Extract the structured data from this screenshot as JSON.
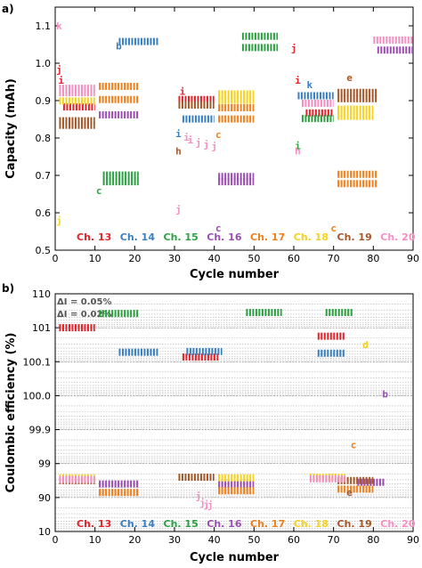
{
  "chart_data": [
    {
      "panel_label": "a)",
      "type": "scatter",
      "xlabel": "Cycle number",
      "ylabel": "Capacity (mAh)",
      "xlim": [
        0,
        90
      ],
      "ylim": [
        0.5,
        1.15
      ],
      "x_ticks": [
        "0",
        "10",
        "20",
        "30",
        "40",
        "50",
        "60",
        "70",
        "80",
        "90"
      ],
      "y_ticks": [
        "0.5",
        "0.6",
        "0.7",
        "0.8",
        "0.9",
        "1.0",
        "1.1"
      ],
      "x_tick_values": [
        0,
        10,
        20,
        30,
        40,
        50,
        60,
        70,
        80,
        90
      ],
      "y_tick_values": [
        0.5,
        0.6,
        0.7,
        0.8,
        0.9,
        1.0,
        1.1
      ],
      "grid": false,
      "legend": {
        "placement": "bottom",
        "entries": [
          {
            "label": "Ch. 13",
            "color": "#e4242b"
          },
          {
            "label": "Ch. 14",
            "color": "#3a7fc0"
          },
          {
            "label": "Ch. 15",
            "color": "#2ea044"
          },
          {
            "label": "Ch. 16",
            "color": "#9a4fb0"
          },
          {
            "label": "Ch. 17",
            "color": "#f07f1c"
          },
          {
            "label": "Ch. 18",
            "color": "#f6d11e"
          },
          {
            "label": "Ch. 19",
            "color": "#a5582a"
          },
          {
            "label": "Ch. 20",
            "color": "#f58fc1"
          }
        ]
      },
      "series": [
        {
          "name": "Ch. 13",
          "color": "#e4242b",
          "points": [
            {
              "x": 1,
              "y": 0.983,
              "label": "j"
            },
            {
              "x": 1.5,
              "y": 0.955,
              "label": "i"
            },
            {
              "x": 32,
              "y": 0.925,
              "label": "i"
            },
            {
              "x": 60,
              "y": 1.04,
              "label": "j"
            },
            {
              "x": 61,
              "y": 0.955,
              "label": "i"
            }
          ],
          "segments": [
            {
              "x0": 2,
              "x1": 10,
              "y": 0.883
            },
            {
              "x0": 31,
              "x1": 40,
              "y": 0.903
            },
            {
              "x0": 63,
              "x1": 70,
              "y": 0.867
            }
          ]
        },
        {
          "name": "Ch. 14",
          "color": "#3a7fc0",
          "points": [
            {
              "x": 16,
              "y": 1.047,
              "label": "b"
            },
            {
              "x": 31,
              "y": 0.812,
              "label": "i"
            },
            {
              "x": 64,
              "y": 0.943,
              "label": "k"
            }
          ],
          "segments": [
            {
              "x0": 16,
              "x1": 26,
              "y": 1.058
            },
            {
              "x0": 32,
              "x1": 40,
              "y": 0.851
            },
            {
              "x0": 61,
              "x1": 70,
              "y": 0.913
            }
          ]
        },
        {
          "name": "Ch. 15",
          "color": "#2ea044",
          "points": [
            {
              "x": 11,
              "y": 0.66,
              "label": "c"
            },
            {
              "x": 61,
              "y": 0.78,
              "label": "i"
            }
          ],
          "segments": [
            {
              "x0": 12,
              "x1": 21,
              "y": 0.701
            },
            {
              "x0": 12,
              "x1": 21,
              "y": 0.683
            },
            {
              "x0": 47,
              "x1": 56,
              "y": 1.072
            },
            {
              "x0": 47,
              "x1": 56,
              "y": 1.042
            },
            {
              "x0": 62,
              "x1": 70,
              "y": 0.852
            }
          ]
        },
        {
          "name": "Ch. 16",
          "color": "#9a4fb0",
          "points": [
            {
              "x": 41,
              "y": 0.56,
              "label": "c"
            }
          ],
          "segments": [
            {
              "x0": 11,
              "x1": 21,
              "y": 0.862
            },
            {
              "x0": 41,
              "x1": 50,
              "y": 0.697
            },
            {
              "x0": 41,
              "x1": 50,
              "y": 0.683
            },
            {
              "x0": 81,
              "x1": 90,
              "y": 1.035
            }
          ]
        },
        {
          "name": "Ch. 17",
          "color": "#f07f1c",
          "points": [
            {
              "x": 41,
              "y": 0.81,
              "label": "c"
            },
            {
              "x": 70,
              "y": 0.56,
              "label": "c"
            }
          ],
          "segments": [
            {
              "x0": 11,
              "x1": 21,
              "y": 0.938
            },
            {
              "x0": 11,
              "x1": 21,
              "y": 0.903
            },
            {
              "x0": 41,
              "x1": 50,
              "y": 0.881
            },
            {
              "x0": 41,
              "x1": 50,
              "y": 0.851
            },
            {
              "x0": 71,
              "x1": 81,
              "y": 0.703
            },
            {
              "x0": 71,
              "x1": 81,
              "y": 0.678
            }
          ]
        },
        {
          "name": "Ch. 18",
          "color": "#f6d11e",
          "points": [
            {
              "x": 1,
              "y": 0.58,
              "label": "j"
            }
          ],
          "segments": [
            {
              "x0": 1,
              "x1": 10,
              "y": 0.899
            },
            {
              "x0": 41,
              "x1": 50,
              "y": 0.918
            },
            {
              "x0": 41,
              "x1": 50,
              "y": 0.901
            },
            {
              "x0": 71,
              "x1": 80,
              "y": 0.877
            },
            {
              "x0": 71,
              "x1": 80,
              "y": 0.858
            }
          ]
        },
        {
          "name": "Ch. 19",
          "color": "#a5582a",
          "points": [
            {
              "x": 31,
              "y": 0.765,
              "label": "h"
            },
            {
              "x": 74,
              "y": 0.962,
              "label": "e"
            }
          ],
          "segments": [
            {
              "x0": 1,
              "x1": 10,
              "y": 0.846
            },
            {
              "x0": 1,
              "x1": 10,
              "y": 0.834
            },
            {
              "x0": 31,
              "x1": 40,
              "y": 0.888
            },
            {
              "x0": 71,
              "x1": 81,
              "y": 0.922
            },
            {
              "x0": 71,
              "x1": 81,
              "y": 0.905
            }
          ]
        },
        {
          "name": "Ch. 20",
          "color": "#f58fc1",
          "points": [
            {
              "x": 1,
              "y": 1.1,
              "label": "k"
            },
            {
              "x": 31,
              "y": 0.61,
              "label": "j"
            },
            {
              "x": 33,
              "y": 0.802,
              "label": "i"
            },
            {
              "x": 34,
              "y": 0.795,
              "label": "i"
            },
            {
              "x": 36,
              "y": 0.788,
              "label": "j"
            },
            {
              "x": 38,
              "y": 0.783,
              "label": "j"
            },
            {
              "x": 40,
              "y": 0.778,
              "label": "j"
            },
            {
              "x": 61,
              "y": 0.766,
              "label": "h"
            }
          ],
          "segments": [
            {
              "x0": 1,
              "x1": 10,
              "y": 0.933
            },
            {
              "x0": 1,
              "x1": 10,
              "y": 0.921
            },
            {
              "x0": 62,
              "x1": 70,
              "y": 0.893
            },
            {
              "x0": 80,
              "x1": 90,
              "y": 1.062
            }
          ]
        }
      ]
    },
    {
      "panel_label": "b)",
      "type": "scatter",
      "xlabel": "Cycle number",
      "ylabel": "Coulombic efficiency (%)",
      "xlim": [
        0,
        90
      ],
      "x_ticks": [
        "0",
        "10",
        "20",
        "30",
        "40",
        "50",
        "60",
        "70",
        "80",
        "90"
      ],
      "x_tick_values": [
        0,
        10,
        20,
        30,
        40,
        50,
        60,
        70,
        80,
        90
      ],
      "y_ticks": [
        "110",
        "101",
        "100.1",
        "100.0",
        "99.9",
        "99",
        "90",
        "10"
      ],
      "y_tick_levels": [
        0,
        1,
        2,
        3,
        4,
        5,
        6,
        7
      ],
      "ylim_levels": [
        0,
        7
      ],
      "annotations": [
        "ΔI = 0.05%",
        "ΔI = 0.02%"
      ],
      "grid": true,
      "legend": {
        "placement": "bottom",
        "entries": [
          {
            "label": "Ch. 13",
            "color": "#e4242b"
          },
          {
            "label": "Ch. 14",
            "color": "#3a7fc0"
          },
          {
            "label": "Ch. 15",
            "color": "#2ea044"
          },
          {
            "label": "Ch. 16",
            "color": "#9a4fb0"
          },
          {
            "label": "Ch. 17",
            "color": "#f07f1c"
          },
          {
            "label": "Ch. 18",
            "color": "#f6d11e"
          },
          {
            "label": "Ch. 19",
            "color": "#a5582a"
          },
          {
            "label": "Ch. 20",
            "color": "#f58fc1"
          }
        ]
      },
      "series": [
        {
          "name": "Ch. 13",
          "color": "#e4242b",
          "segments": [
            {
              "x0": 1,
              "x1": 10,
              "lvl": 1.0
            },
            {
              "x0": 32,
              "x1": 41,
              "lvl": 1.86
            },
            {
              "x0": 66,
              "x1": 73,
              "lvl": 1.25
            }
          ],
          "points": []
        },
        {
          "name": "Ch. 14",
          "color": "#3a7fc0",
          "segments": [
            {
              "x0": 16,
              "x1": 26,
              "lvl": 1.72
            },
            {
              "x0": 33,
              "x1": 42,
              "lvl": 1.7
            },
            {
              "x0": 66,
              "x1": 73,
              "lvl": 1.75
            }
          ],
          "points": []
        },
        {
          "name": "Ch. 15",
          "color": "#2ea044",
          "segments": [
            {
              "x0": 11,
              "x1": 21,
              "lvl": 0.58
            },
            {
              "x0": 48,
              "x1": 57,
              "lvl": 0.55
            },
            {
              "x0": 68,
              "x1": 75,
              "lvl": 0.55
            }
          ],
          "points": []
        },
        {
          "name": "Ch. 16",
          "color": "#9a4fb0",
          "segments": [
            {
              "x0": 11,
              "x1": 21,
              "lvl": 5.6
            },
            {
              "x0": 41,
              "x1": 50,
              "lvl": 5.6
            },
            {
              "x0": 76,
              "x1": 83,
              "lvl": 5.55
            }
          ],
          "points": [
            {
              "x": 83,
              "y_lvl": 2.95,
              "label": "b"
            }
          ]
        },
        {
          "name": "Ch. 17",
          "color": "#f07f1c",
          "segments": [
            {
              "x0": 11,
              "x1": 21,
              "lvl": 5.85
            },
            {
              "x0": 41,
              "x1": 50,
              "lvl": 5.8
            },
            {
              "x0": 71,
              "x1": 80,
              "lvl": 5.75
            }
          ],
          "points": [
            {
              "x": 75,
              "y_lvl": 4.45,
              "label": "c"
            }
          ]
        },
        {
          "name": "Ch. 18",
          "color": "#f6d11e",
          "segments": [
            {
              "x0": 1,
              "x1": 10,
              "lvl": 5.42
            },
            {
              "x0": 41,
              "x1": 50,
              "lvl": 5.42
            },
            {
              "x0": 64,
              "x1": 73,
              "lvl": 5.4
            }
          ],
          "points": [
            {
              "x": 78,
              "y_lvl": 1.5,
              "label": "d"
            }
          ]
        },
        {
          "name": "Ch. 19",
          "color": "#a5582a",
          "segments": [
            {
              "x0": 1,
              "x1": 10,
              "lvl": 5.5
            },
            {
              "x0": 31,
              "x1": 40,
              "lvl": 5.4
            },
            {
              "x0": 71,
              "x1": 80,
              "lvl": 5.5
            }
          ],
          "points": [
            {
              "x": 74,
              "y_lvl": 5.85,
              "label": "e"
            }
          ]
        },
        {
          "name": "Ch. 20",
          "color": "#f58fc1",
          "segments": [
            {
              "x0": 1,
              "x1": 10,
              "lvl": 5.47
            },
            {
              "x0": 64,
              "x1": 73,
              "lvl": 5.45
            }
          ],
          "points": [
            {
              "x": 36,
              "y_lvl": 5.95,
              "label": "j"
            },
            {
              "x": 37,
              "y_lvl": 6.15,
              "label": "j"
            },
            {
              "x": 38,
              "y_lvl": 6.2,
              "label": "j"
            },
            {
              "x": 39,
              "y_lvl": 6.22,
              "label": "j"
            }
          ]
        }
      ]
    }
  ]
}
